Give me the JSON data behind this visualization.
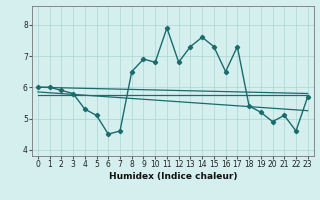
{
  "xlabel": "Humidex (Indice chaleur)",
  "bg_color": "#d5efef",
  "grid_color": "#aad4d4",
  "line_color": "#1a6b6b",
  "xlim": [
    -0.5,
    23.5
  ],
  "ylim": [
    3.8,
    8.6
  ],
  "yticks": [
    4,
    5,
    6,
    7,
    8
  ],
  "xticks": [
    0,
    1,
    2,
    3,
    4,
    5,
    6,
    7,
    8,
    9,
    10,
    11,
    12,
    13,
    14,
    15,
    16,
    17,
    18,
    19,
    20,
    21,
    22,
    23
  ],
  "main_series_x": [
    0,
    1,
    2,
    3,
    4,
    5,
    6,
    7,
    8,
    9,
    10,
    11,
    12,
    13,
    14,
    15,
    16,
    17,
    18,
    19,
    20,
    21,
    22,
    23
  ],
  "main_series_y": [
    6.0,
    6.0,
    5.9,
    5.8,
    5.3,
    5.1,
    4.5,
    4.6,
    6.5,
    6.9,
    6.8,
    7.9,
    6.8,
    7.3,
    7.6,
    7.3,
    6.5,
    7.3,
    5.4,
    5.2,
    4.9,
    5.1,
    4.6,
    5.7
  ],
  "trend1_x": [
    0,
    23
  ],
  "trend1_y": [
    6.0,
    5.8
  ],
  "trend2_x": [
    0,
    23
  ],
  "trend2_y": [
    5.85,
    5.25
  ],
  "trend3_x": [
    0,
    23
  ],
  "trend3_y": [
    5.75,
    5.75
  ]
}
